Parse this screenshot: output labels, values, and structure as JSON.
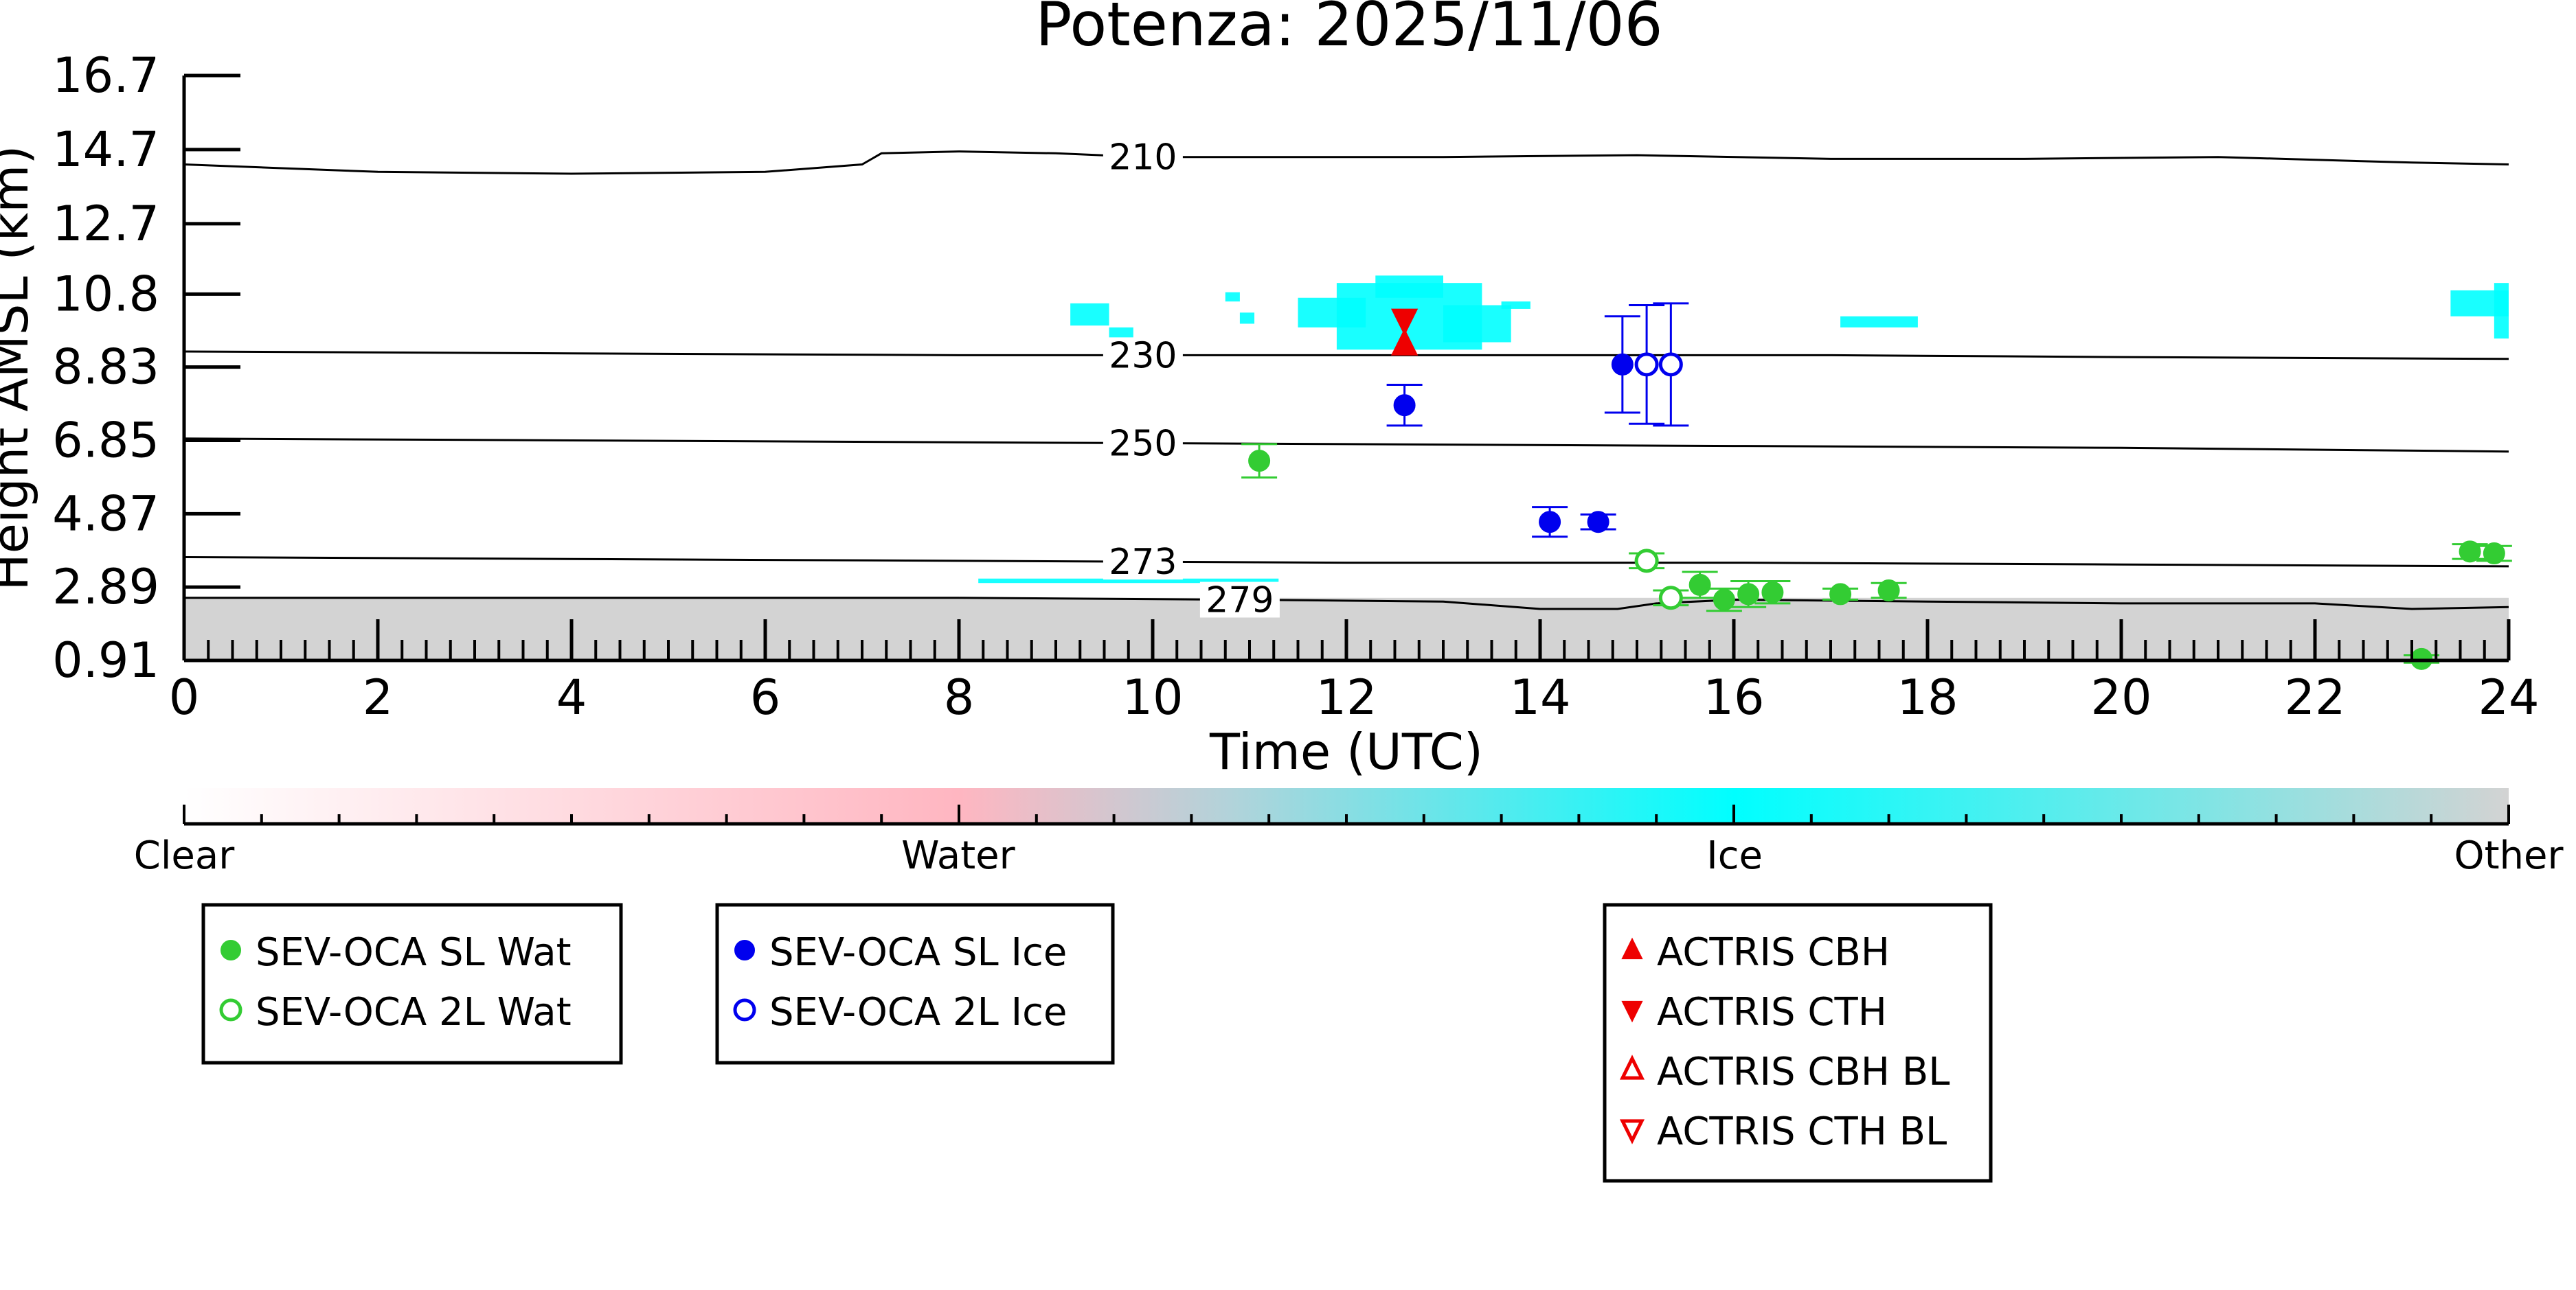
{
  "chart_data": {
    "type": "scatter",
    "title": "Potenza: 2025/11/06",
    "xlabel": "Time (UTC)",
    "ylabel": "Height AMSL (km)",
    "xlim": [
      0,
      24
    ],
    "ylim": [
      0.91,
      16.7
    ],
    "x_ticks": [
      "0",
      "2",
      "4",
      "6",
      "8",
      "10",
      "12",
      "14",
      "16",
      "18",
      "20",
      "22",
      "24"
    ],
    "y_ticks": [
      "0.91",
      "2.89",
      "4.87",
      "6.85",
      "8.83",
      "10.8",
      "12.7",
      "14.7",
      "16.7"
    ],
    "y_tick_values": [
      0.91,
      2.89,
      4.87,
      6.85,
      8.83,
      10.8,
      12.7,
      14.7,
      16.7
    ],
    "grid": false,
    "colors": {
      "sl_wat": "#33cc33",
      "sl_ice": "#0000ee",
      "actris": "#ee0000",
      "ice_cloud": "#00ffff",
      "other": "#d3d3d3",
      "water": "#ffb6c1"
    },
    "isotherms": [
      {
        "label": "210",
        "label_x": 9.9,
        "points": [
          [
            0,
            14.3
          ],
          [
            2,
            14.1
          ],
          [
            4,
            14.05
          ],
          [
            6,
            14.1
          ],
          [
            7,
            14.3
          ],
          [
            7.2,
            14.6
          ],
          [
            8,
            14.65
          ],
          [
            9,
            14.6
          ],
          [
            9.9,
            14.5
          ],
          [
            11,
            14.5
          ],
          [
            13,
            14.5
          ],
          [
            15,
            14.55
          ],
          [
            17,
            14.45
          ],
          [
            19,
            14.45
          ],
          [
            21,
            14.5
          ],
          [
            23,
            14.35
          ],
          [
            24,
            14.3
          ]
        ]
      },
      {
        "label": "230",
        "label_x": 9.9,
        "points": [
          [
            0,
            9.25
          ],
          [
            4,
            9.2
          ],
          [
            8,
            9.15
          ],
          [
            11,
            9.15
          ],
          [
            14,
            9.15
          ],
          [
            17,
            9.15
          ],
          [
            20,
            9.1
          ],
          [
            24,
            9.05
          ]
        ]
      },
      {
        "label": "250",
        "label_x": 9.9,
        "points": [
          [
            0,
            6.9
          ],
          [
            4,
            6.85
          ],
          [
            8,
            6.8
          ],
          [
            12,
            6.75
          ],
          [
            16,
            6.7
          ],
          [
            20,
            6.65
          ],
          [
            24,
            6.55
          ]
        ]
      },
      {
        "label": "273",
        "label_x": 9.9,
        "points": [
          [
            0,
            3.7
          ],
          [
            4,
            3.65
          ],
          [
            8,
            3.6
          ],
          [
            12,
            3.55
          ],
          [
            16,
            3.55
          ],
          [
            20,
            3.5
          ],
          [
            24,
            3.45
          ]
        ]
      },
      {
        "label": "279",
        "label_x": 10.9,
        "points": [
          [
            0,
            2.6
          ],
          [
            4,
            2.6
          ],
          [
            8,
            2.6
          ],
          [
            10.9,
            2.55
          ],
          [
            13,
            2.5
          ],
          [
            14,
            2.3
          ],
          [
            14.8,
            2.3
          ],
          [
            15.2,
            2.45
          ],
          [
            16,
            2.55
          ],
          [
            18,
            2.5
          ],
          [
            20,
            2.45
          ],
          [
            22,
            2.45
          ],
          [
            23,
            2.3
          ],
          [
            24,
            2.35
          ]
        ]
      }
    ],
    "series": [
      {
        "name": "SEV-OCA SL Wat",
        "marker": "filled-circle",
        "color": "#33cc33",
        "points": [
          [
            11.1,
            6.3,
            0.45
          ],
          [
            15.65,
            2.95,
            0.35
          ],
          [
            15.9,
            2.55,
            0.3
          ],
          [
            16.15,
            2.7,
            0.35
          ],
          [
            16.4,
            2.75,
            0.3
          ],
          [
            17.1,
            2.7,
            0.15
          ],
          [
            17.6,
            2.8,
            0.2
          ],
          [
            23.1,
            0.95,
            0.1
          ],
          [
            23.6,
            3.85,
            0.2
          ],
          [
            23.85,
            3.8,
            0.2
          ]
        ]
      },
      {
        "name": "SEV-OCA 2L Wat",
        "marker": "open-circle",
        "color": "#33cc33",
        "points": [
          [
            15.1,
            3.6,
            0.2
          ],
          [
            15.35,
            2.6,
            0.2
          ]
        ]
      },
      {
        "name": "SEV-OCA SL Ice",
        "marker": "filled-circle",
        "color": "#0000ee",
        "points": [
          [
            12.6,
            7.8,
            0.55
          ],
          [
            14.1,
            4.65,
            0.4
          ],
          [
            14.6,
            4.65,
            0.2
          ],
          [
            14.85,
            8.9,
            1.3
          ]
        ]
      },
      {
        "name": "SEV-OCA 2L Ice",
        "marker": "open-circle",
        "color": "#0000ee",
        "points": [
          [
            15.1,
            8.9,
            1.6
          ],
          [
            15.35,
            8.9,
            1.65
          ]
        ]
      },
      {
        "name": "ACTRIS CBH",
        "marker": "filled-triangle-up",
        "color": "#ee0000",
        "points": [
          [
            12.6,
            9.45
          ]
        ]
      },
      {
        "name": "ACTRIS CTH",
        "marker": "filled-triangle-down",
        "color": "#ee0000",
        "points": [
          [
            12.6,
            10.1
          ]
        ]
      }
    ],
    "ice_cloud_patches": [
      {
        "x0": 9.15,
        "x1": 9.55,
        "y0": 9.95,
        "y1": 10.55
      },
      {
        "x0": 9.55,
        "x1": 9.8,
        "y0": 9.3,
        "y1": 9.9
      },
      {
        "x0": 10.9,
        "x1": 11.05,
        "y0": 10.0,
        "y1": 10.3
      },
      {
        "x0": 10.75,
        "x1": 10.9,
        "y0": 10.6,
        "y1": 10.85
      },
      {
        "x0": 11.5,
        "x1": 12.2,
        "y0": 9.9,
        "y1": 10.7
      },
      {
        "x0": 11.9,
        "x1": 13.4,
        "y0": 9.3,
        "y1": 11.1
      },
      {
        "x0": 12.3,
        "x1": 13.0,
        "y0": 10.7,
        "y1": 11.3
      },
      {
        "x0": 13.0,
        "x1": 13.7,
        "y0": 9.5,
        "y1": 10.5
      },
      {
        "x0": 13.6,
        "x1": 13.9,
        "y0": 10.4,
        "y1": 10.6
      },
      {
        "x0": 17.1,
        "x1": 17.9,
        "y0": 9.9,
        "y1": 10.2
      },
      {
        "x0": 23.4,
        "x1": 24.0,
        "y0": 10.2,
        "y1": 10.9
      },
      {
        "x0": 23.85,
        "x1": 24.0,
        "y0": 9.6,
        "y1": 11.1
      }
    ],
    "ice_cloud_low": [
      {
        "x0": 8.2,
        "x1": 11.3,
        "y0": 3.0,
        "y1": 3.12
      }
    ],
    "other_layer": {
      "y0": 0.91,
      "y1": 2.6
    },
    "colorbar": {
      "labels": [
        "Clear",
        "Water",
        "Ice",
        "Other"
      ],
      "stops": [
        0,
        0.333,
        0.667,
        1
      ]
    },
    "legend_groups": [
      [
        "SEV-OCA SL Wat",
        "SEV-OCA 2L Wat"
      ],
      [
        "SEV-OCA SL Ice",
        "SEV-OCA 2L Ice"
      ],
      [
        "ACTRIS CBH",
        "ACTRIS CTH",
        "ACTRIS CBH BL",
        "ACTRIS CTH BL"
      ]
    ],
    "legend_markers": {
      "SEV-OCA SL Wat": {
        "marker": "filled-circle",
        "color": "#33cc33"
      },
      "SEV-OCA 2L Wat": {
        "marker": "open-circle",
        "color": "#33cc33"
      },
      "SEV-OCA SL Ice": {
        "marker": "filled-circle",
        "color": "#0000ee"
      },
      "SEV-OCA 2L Ice": {
        "marker": "open-circle",
        "color": "#0000ee"
      },
      "ACTRIS CBH": {
        "marker": "filled-triangle-up",
        "color": "#ee0000"
      },
      "ACTRIS CTH": {
        "marker": "filled-triangle-down",
        "color": "#ee0000"
      },
      "ACTRIS CBH BL": {
        "marker": "open-triangle-up",
        "color": "#ee0000"
      },
      "ACTRIS CTH BL": {
        "marker": "open-triangle-down",
        "color": "#ee0000"
      }
    }
  }
}
